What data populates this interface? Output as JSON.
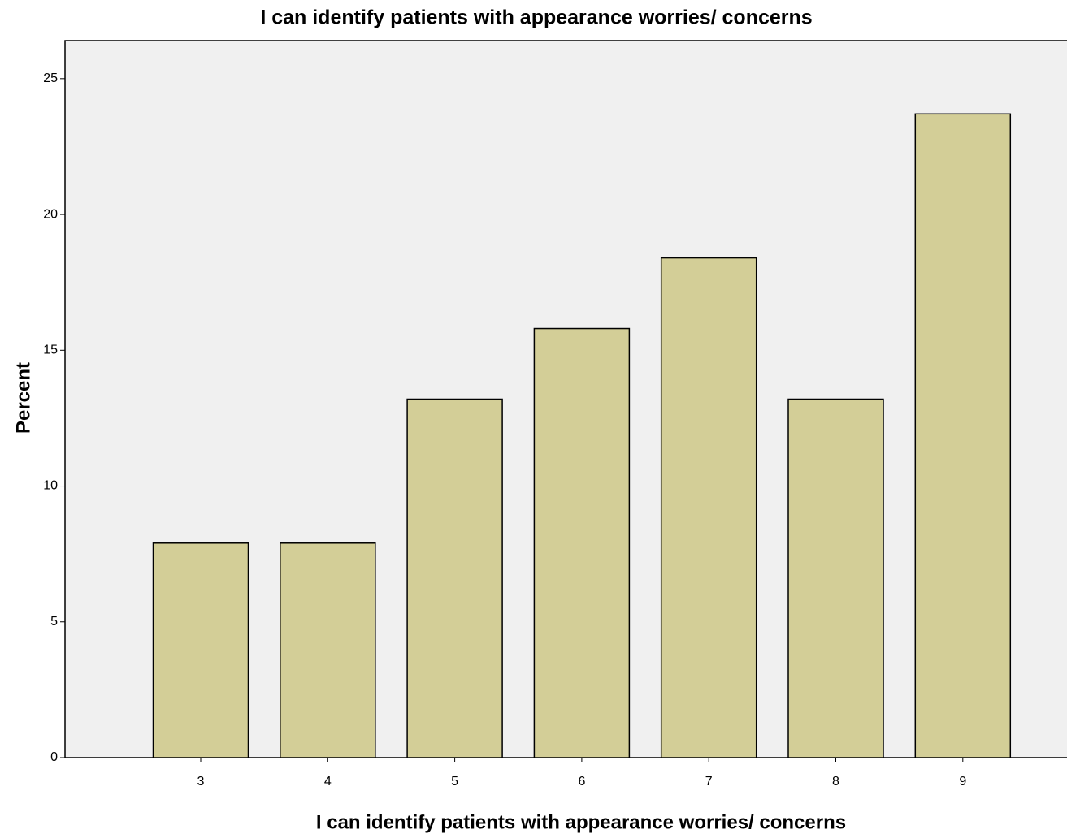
{
  "chart_data": {
    "type": "bar",
    "title": "I can identify patients with appearance worries/ concerns",
    "x_label": "I can identify patients with appearance worries/ concerns",
    "y_label": "Percent",
    "categories": [
      "3",
      "4",
      "5",
      "6",
      "7",
      "8",
      "9"
    ],
    "values": [
      7.9,
      7.9,
      13.2,
      15.8,
      18.4,
      13.2,
      23.7
    ],
    "color": "#d3ce97",
    "ylim": [
      0,
      26.4
    ],
    "yticks": [
      0,
      5,
      10,
      15,
      20,
      25
    ],
    "grid": false
  }
}
